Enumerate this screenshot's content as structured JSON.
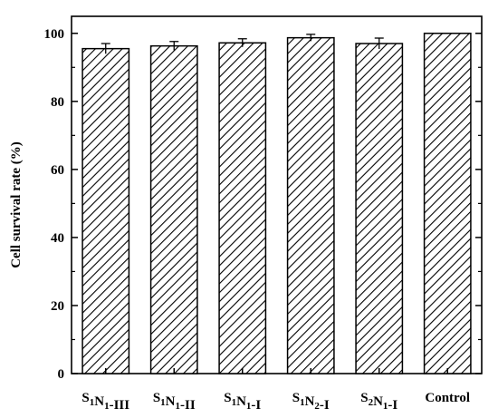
{
  "chart_data": {
    "type": "bar",
    "title": "",
    "xlabel": "",
    "ylabel": "Cell survival rate (%)",
    "ylim": [
      0,
      105
    ],
    "yticks": [
      0,
      20,
      40,
      60,
      80,
      100
    ],
    "grid": false,
    "legend": "none",
    "bar_fill": "diagonal-hatch",
    "colors": {
      "bar_stroke": "#000000",
      "hatch": "#000000",
      "background": "#ffffff"
    },
    "categories": [
      {
        "parts": [
          {
            "t": "S",
            "sub": false
          },
          {
            "t": "1",
            "sub": true
          },
          {
            "t": "N",
            "sub": false
          },
          {
            "t": "1",
            "sub": true
          },
          {
            "t": "-III",
            "sub": false
          }
        ]
      },
      {
        "parts": [
          {
            "t": "S",
            "sub": false
          },
          {
            "t": "1",
            "sub": true
          },
          {
            "t": "N",
            "sub": false
          },
          {
            "t": "1",
            "sub": true
          },
          {
            "t": "-II",
            "sub": false
          }
        ]
      },
      {
        "parts": [
          {
            "t": "S",
            "sub": false
          },
          {
            "t": "1",
            "sub": true
          },
          {
            "t": "N",
            "sub": false
          },
          {
            "t": "1",
            "sub": true
          },
          {
            "t": "-I",
            "sub": false
          }
        ]
      },
      {
        "parts": [
          {
            "t": "S",
            "sub": false
          },
          {
            "t": "1",
            "sub": true
          },
          {
            "t": "N",
            "sub": false
          },
          {
            "t": "2",
            "sub": true
          },
          {
            "t": "-I",
            "sub": false
          }
        ]
      },
      {
        "parts": [
          {
            "t": "S",
            "sub": false
          },
          {
            "t": "2",
            "sub": true
          },
          {
            "t": "N",
            "sub": false
          },
          {
            "t": "1",
            "sub": true
          },
          {
            "t": "-I",
            "sub": false
          }
        ]
      },
      {
        "parts": [
          {
            "t": "Control",
            "sub": false
          }
        ]
      }
    ],
    "values": [
      95.5,
      96.3,
      97.2,
      98.7,
      97.0,
      100.0
    ],
    "errors": [
      1.5,
      1.3,
      1.2,
      1.0,
      1.6,
      0.0
    ]
  }
}
